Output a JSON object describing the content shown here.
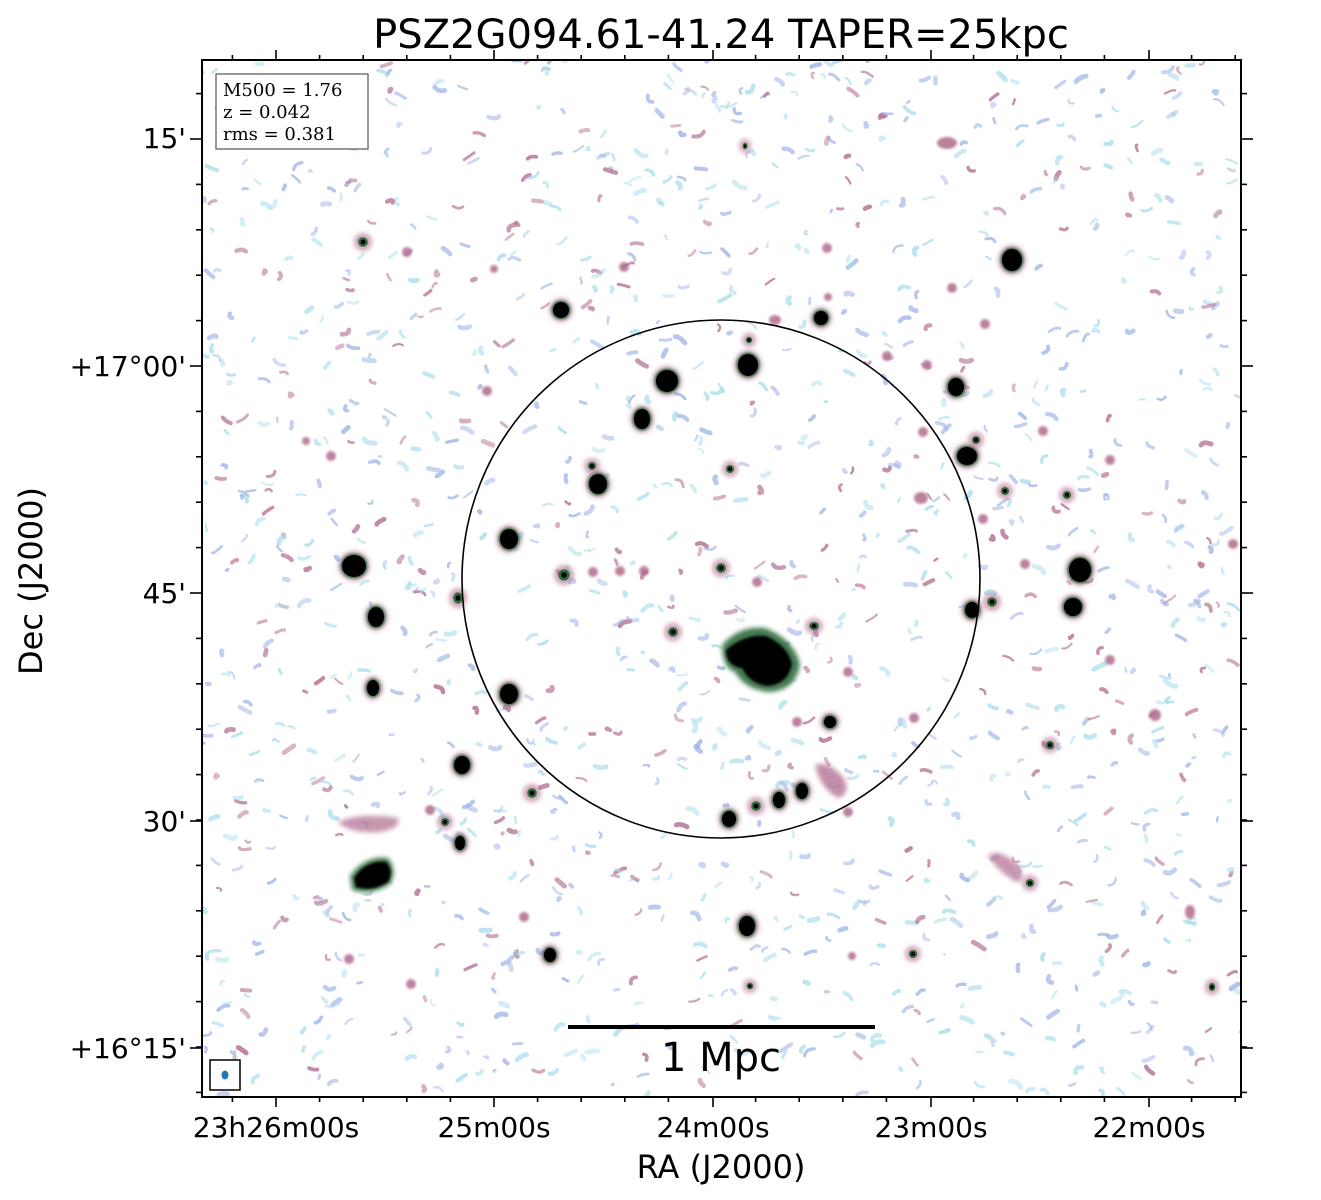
{
  "chart_data": {
    "type": "radio-map",
    "title": "PSZ2G094.61-41.24 TAPER=25kpc",
    "xlabel": "RA (J2000)",
    "ylabel": "Dec (J2000)",
    "x_ticks": [
      "23h26m00s",
      "25m00s",
      "24m00s",
      "23m00s",
      "22m00s"
    ],
    "y_ticks": [
      "15'",
      "+17°00'",
      "45'",
      "30'",
      "+16°15'"
    ],
    "info_lines": [
      "M500 = 1.76",
      "z = 0.042",
      "rms = 0.381"
    ],
    "scale_bar_label": "1 Mpc",
    "colors": {
      "bright_source": "#000000",
      "medium_source": "#2e6b3a",
      "faint_positive": "#b06a8c",
      "noise_blue": "#9fb4e6",
      "noise_cyan": "#a9dcea",
      "beam": "#1f77b4",
      "frame": "#000000"
    }
  }
}
